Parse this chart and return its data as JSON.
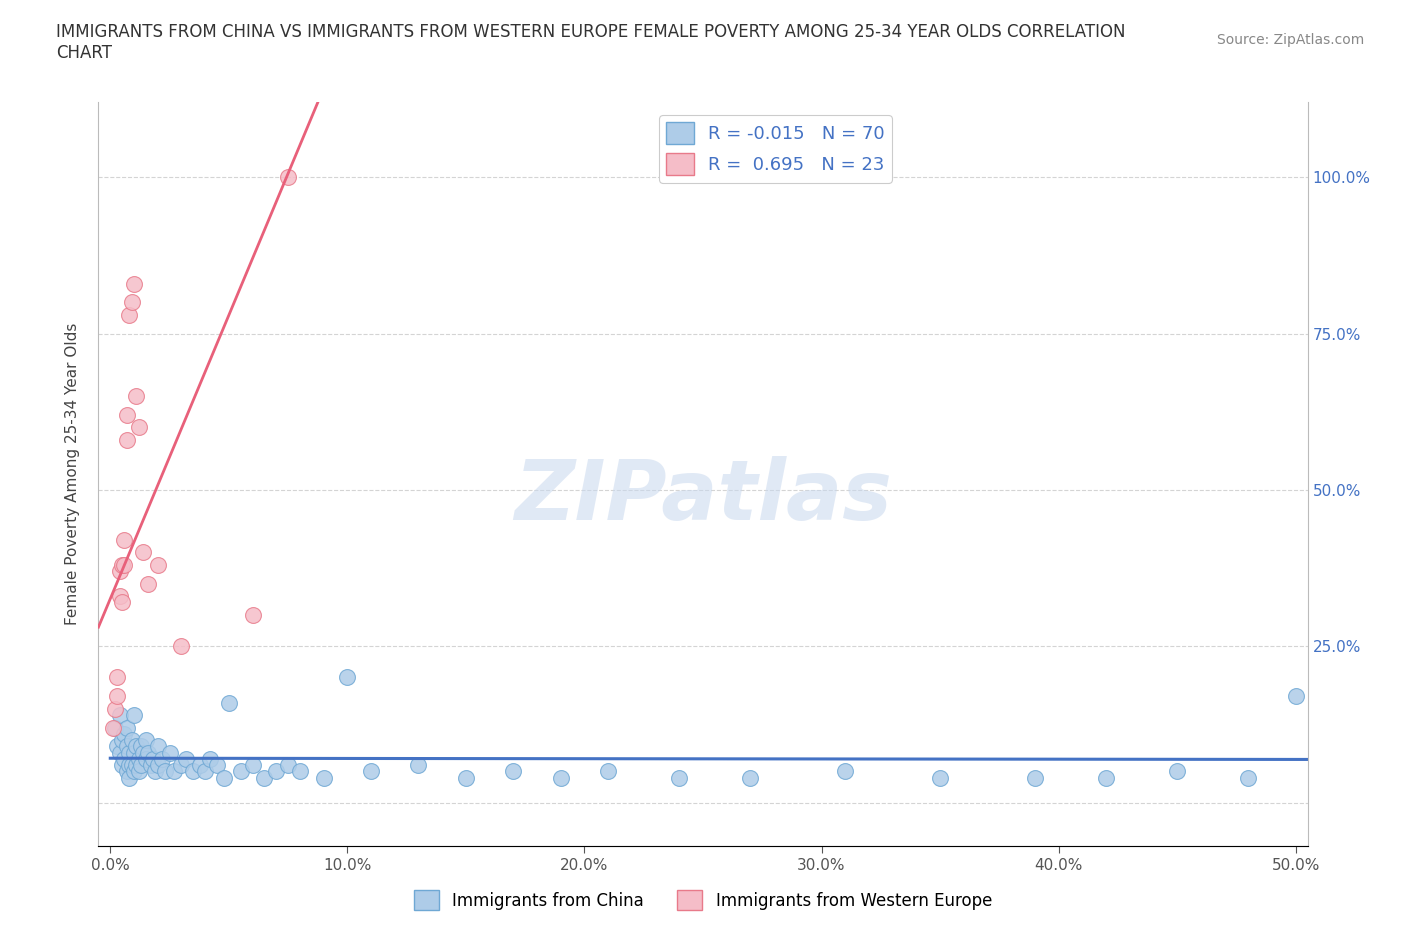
{
  "title": "IMMIGRANTS FROM CHINA VS IMMIGRANTS FROM WESTERN EUROPE FEMALE POVERTY AMONG 25-34 YEAR OLDS CORRELATION\nCHART",
  "source": "Source: ZipAtlas.com",
  "ylabel": "Female Poverty Among 25-34 Year Olds",
  "xlim": [
    -0.005,
    0.505
  ],
  "ylim": [
    -0.07,
    1.12
  ],
  "china_color": "#aecce8",
  "china_edge": "#6fa8d4",
  "we_color": "#f5bdc8",
  "we_edge": "#e87a8a",
  "china_line_color": "#4472c4",
  "we_line_color": "#e8607a",
  "R_china": -0.015,
  "N_china": 70,
  "R_we": 0.695,
  "N_we": 23,
  "legend_label_china": "Immigrants from China",
  "legend_label_we": "Immigrants from Western Europe",
  "watermark": "ZIPatlas",
  "china_x": [
    0.002,
    0.003,
    0.004,
    0.004,
    0.005,
    0.005,
    0.006,
    0.006,
    0.007,
    0.007,
    0.007,
    0.008,
    0.008,
    0.008,
    0.009,
    0.009,
    0.01,
    0.01,
    0.01,
    0.011,
    0.011,
    0.012,
    0.012,
    0.013,
    0.013,
    0.014,
    0.015,
    0.015,
    0.016,
    0.017,
    0.018,
    0.019,
    0.02,
    0.02,
    0.022,
    0.023,
    0.025,
    0.027,
    0.03,
    0.032,
    0.035,
    0.038,
    0.04,
    0.042,
    0.045,
    0.048,
    0.05,
    0.055,
    0.06,
    0.065,
    0.07,
    0.075,
    0.08,
    0.09,
    0.1,
    0.11,
    0.13,
    0.15,
    0.17,
    0.19,
    0.21,
    0.24,
    0.27,
    0.31,
    0.35,
    0.39,
    0.42,
    0.45,
    0.48,
    0.5
  ],
  "china_y": [
    0.12,
    0.09,
    0.14,
    0.08,
    0.1,
    0.06,
    0.11,
    0.07,
    0.09,
    0.05,
    0.12,
    0.08,
    0.06,
    0.04,
    0.1,
    0.06,
    0.08,
    0.05,
    0.14,
    0.09,
    0.06,
    0.07,
    0.05,
    0.09,
    0.06,
    0.08,
    0.1,
    0.07,
    0.08,
    0.06,
    0.07,
    0.05,
    0.09,
    0.06,
    0.07,
    0.05,
    0.08,
    0.05,
    0.06,
    0.07,
    0.05,
    0.06,
    0.05,
    0.07,
    0.06,
    0.04,
    0.16,
    0.05,
    0.06,
    0.04,
    0.05,
    0.06,
    0.05,
    0.04,
    0.2,
    0.05,
    0.06,
    0.04,
    0.05,
    0.04,
    0.05,
    0.04,
    0.04,
    0.05,
    0.04,
    0.04,
    0.04,
    0.05,
    0.04,
    0.17
  ],
  "we_x": [
    0.001,
    0.002,
    0.003,
    0.003,
    0.004,
    0.004,
    0.005,
    0.005,
    0.006,
    0.006,
    0.007,
    0.007,
    0.008,
    0.009,
    0.01,
    0.011,
    0.012,
    0.014,
    0.016,
    0.02,
    0.03,
    0.06,
    0.075
  ],
  "we_y": [
    0.12,
    0.15,
    0.2,
    0.17,
    0.37,
    0.33,
    0.38,
    0.32,
    0.42,
    0.38,
    0.58,
    0.62,
    0.78,
    0.8,
    0.83,
    0.65,
    0.6,
    0.4,
    0.35,
    0.38,
    0.25,
    0.3,
    1.0
  ]
}
